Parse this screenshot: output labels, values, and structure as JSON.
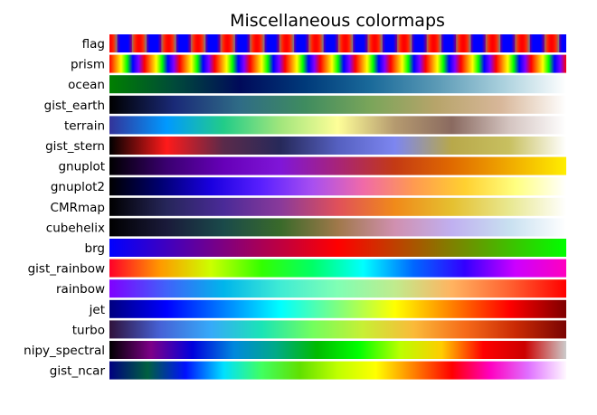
{
  "chart_data": {
    "type": "heatmap",
    "title": "Miscellaneous colormaps",
    "colormaps": [
      {
        "name": "flag",
        "pattern": "flag"
      },
      {
        "name": "prism",
        "pattern": "prism"
      },
      {
        "name": "ocean",
        "stops": [
          "#008000",
          "#004a3a",
          "#000a5a",
          "#003a7a",
          "#1a6a9a",
          "#5a99b5",
          "#a8cfdc",
          "#ffffff"
        ]
      },
      {
        "name": "gist_earth",
        "stops": [
          "#000000",
          "#1a2a78",
          "#2f6c86",
          "#3f8c5f",
          "#7aa55a",
          "#b7a46a",
          "#d8b79a",
          "#ffffff"
        ]
      },
      {
        "name": "terrain",
        "stops": [
          "#333399",
          "#0099ff",
          "#22cc88",
          "#a2e67c",
          "#fefe98",
          "#b59a6f",
          "#8a6a60",
          "#d4c4c0",
          "#ffffff"
        ]
      },
      {
        "name": "gist_stern",
        "stops": [
          "#000000",
          "#ff1a1a",
          "#5a2a4a",
          "#26295a",
          "#5560c0",
          "#7d86f0",
          "#b8a84a",
          "#c8c060",
          "#ffffff"
        ]
      },
      {
        "name": "gnuplot",
        "stops": [
          "#000000",
          "#3a0070",
          "#6600b8",
          "#8016d8",
          "#a82478",
          "#c43a14",
          "#e06a00",
          "#f0aa00",
          "#ffee00"
        ]
      },
      {
        "name": "gnuplot2",
        "stops": [
          "#000000",
          "#000070",
          "#1a00e0",
          "#5a20ff",
          "#a84ff0",
          "#f06aa8",
          "#ff9a50",
          "#ffd030",
          "#ffff80",
          "#ffffff"
        ]
      },
      {
        "name": "CMRmap",
        "stops": [
          "#000000",
          "#26265a",
          "#4a2a98",
          "#8a3a9a",
          "#e0505a",
          "#f08a1a",
          "#e5c030",
          "#e8e890",
          "#ffffff"
        ]
      },
      {
        "name": "cubehelix",
        "stops": [
          "#000000",
          "#1a1a3a",
          "#1a4a4a",
          "#3a6a2a",
          "#a0784a",
          "#d090b0",
          "#c0b0f0",
          "#c8e0f0",
          "#ffffff"
        ]
      },
      {
        "name": "brg",
        "stops": [
          "#0000ff",
          "#7f0080",
          "#ff0000",
          "#7f8000",
          "#00ff00"
        ]
      },
      {
        "name": "gist_rainbow",
        "stops": [
          "#ff0029",
          "#ff9900",
          "#ccff00",
          "#33ff00",
          "#00ff66",
          "#00ffff",
          "#0066ff",
          "#3300ff",
          "#cc00ff",
          "#ff00bf"
        ]
      },
      {
        "name": "rainbow",
        "stops": [
          "#8000ff",
          "#4062fa",
          "#00b5eb",
          "#40ecd4",
          "#80ffb4",
          "#c0eb8d",
          "#ffb360",
          "#ff6231",
          "#ff0000"
        ]
      },
      {
        "name": "jet",
        "stops": [
          "#00007f",
          "#0000ff",
          "#007fff",
          "#00ffff",
          "#7fff7f",
          "#ffff00",
          "#ff7f00",
          "#ff0000",
          "#7f0000"
        ]
      },
      {
        "name": "turbo",
        "stops": [
          "#30123b",
          "#4662d7",
          "#36aaf9",
          "#1ae4b6",
          "#72fe5e",
          "#c8ef34",
          "#faba39",
          "#f66b19",
          "#ca2a04",
          "#7a0403"
        ]
      },
      {
        "name": "nipy_spectral",
        "stops": [
          "#000000",
          "#7d0088",
          "#0000dd",
          "#0088dd",
          "#00aa88",
          "#00bb00",
          "#00ff00",
          "#bbff00",
          "#ffcc00",
          "#ff0000",
          "#cc0000",
          "#cccccc"
        ]
      },
      {
        "name": "gist_ncar",
        "stops": [
          "#000080",
          "#006040",
          "#0010ff",
          "#00e0ff",
          "#40ff60",
          "#60e000",
          "#c0ff00",
          "#ffff00",
          "#ff8000",
          "#ff0000",
          "#ff00c0",
          "#e070ff",
          "#fff8ff"
        ]
      }
    ]
  }
}
